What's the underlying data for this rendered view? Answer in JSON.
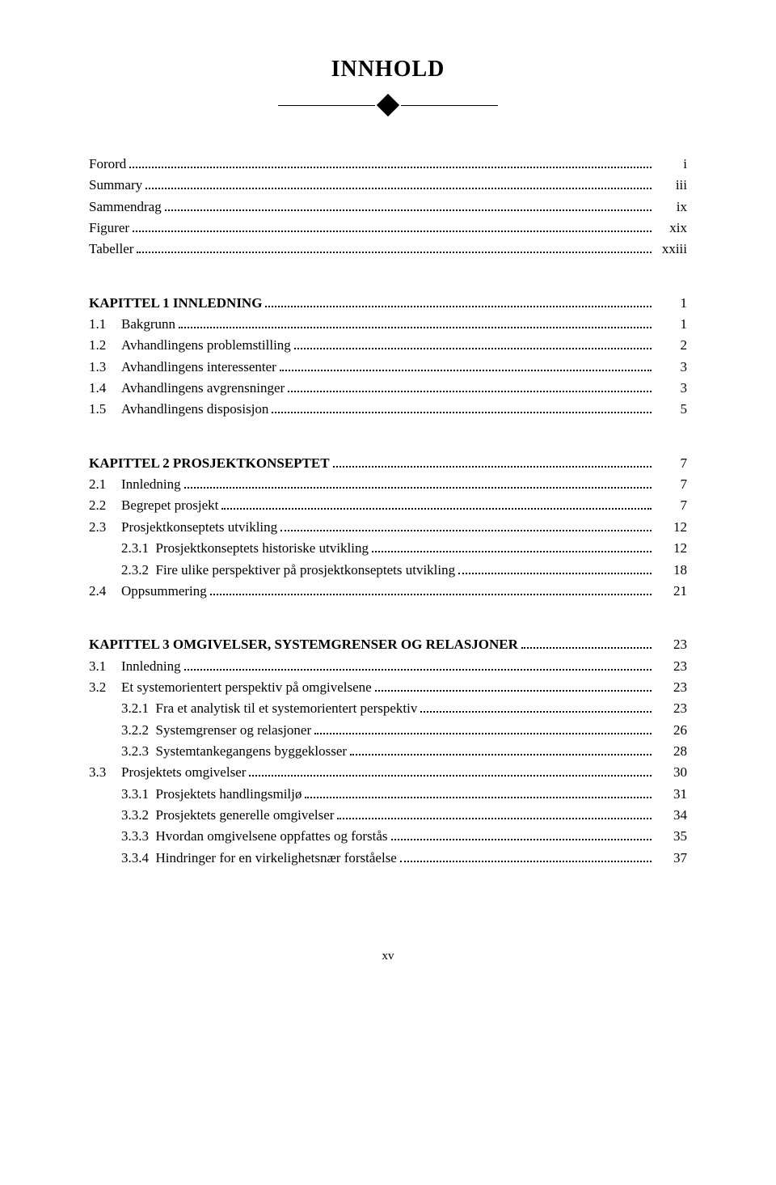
{
  "title": "INNHOLD",
  "page_number": "xv",
  "blocks": [
    {
      "entries": [
        {
          "level": 0,
          "num": "",
          "label": "Forord",
          "page": "i"
        },
        {
          "level": 0,
          "num": "",
          "label": "Summary",
          "page": "iii"
        },
        {
          "level": 0,
          "num": "",
          "label": "Sammendrag",
          "page": "ix"
        },
        {
          "level": 0,
          "num": "",
          "label": "Figurer",
          "page": "xix"
        },
        {
          "level": 0,
          "num": "",
          "label": "Tabeller",
          "page": "xxiii"
        }
      ]
    },
    {
      "entries": [
        {
          "level": 0,
          "num": "",
          "label": "KAPITTEL 1  INNLEDNING",
          "page": "1",
          "heading": true
        },
        {
          "level": 1,
          "num": "1.1",
          "label": "Bakgrunn",
          "page": "1"
        },
        {
          "level": 1,
          "num": "1.2",
          "label": "Avhandlingens problemstilling",
          "page": "2"
        },
        {
          "level": 1,
          "num": "1.3",
          "label": "Avhandlingens interessenter",
          "page": "3"
        },
        {
          "level": 1,
          "num": "1.4",
          "label": "Avhandlingens avgrensninger",
          "page": "3"
        },
        {
          "level": 1,
          "num": "1.5",
          "label": "Avhandlingens disposisjon",
          "page": "5"
        }
      ]
    },
    {
      "entries": [
        {
          "level": 0,
          "num": "",
          "label": "KAPITTEL  2  PROSJEKTKONSEPTET",
          "page": "7",
          "heading": true
        },
        {
          "level": 1,
          "num": "2.1",
          "label": "Innledning",
          "page": "7"
        },
        {
          "level": 1,
          "num": "2.2",
          "label": "Begrepet prosjekt",
          "page": "7"
        },
        {
          "level": 1,
          "num": "2.3",
          "label": "Prosjektkonseptets utvikling",
          "page": "12"
        },
        {
          "level": 2,
          "num": "2.3.1",
          "label": "Prosjektkonseptets historiske utvikling",
          "page": "12"
        },
        {
          "level": 2,
          "num": "2.3.2",
          "label": "Fire ulike perspektiver på prosjektkonseptets utvikling",
          "page": "18"
        },
        {
          "level": 1,
          "num": "2.4",
          "label": "Oppsummering",
          "page": "21"
        }
      ]
    },
    {
      "entries": [
        {
          "level": 0,
          "num": "",
          "label": "KAPITTEL 3  OMGIVELSER, SYSTEMGRENSER OG RELASJONER",
          "page": "23",
          "heading": true
        },
        {
          "level": 1,
          "num": "3.1",
          "label": "Innledning",
          "page": "23"
        },
        {
          "level": 1,
          "num": "3.2",
          "label": "Et systemorientert perspektiv på omgivelsene",
          "page": "23"
        },
        {
          "level": 2,
          "num": "3.2.1",
          "label": "Fra et analytisk til et systemorientert perspektiv",
          "page": "23"
        },
        {
          "level": 2,
          "num": "3.2.2",
          "label": "Systemgrenser og relasjoner",
          "page": "26"
        },
        {
          "level": 2,
          "num": "3.2.3",
          "label": "Systemtankegangens byggeklosser",
          "page": "28"
        },
        {
          "level": 1,
          "num": "3.3",
          "label": "Prosjektets omgivelser",
          "page": "30"
        },
        {
          "level": 2,
          "num": "3.3.1",
          "label": "Prosjektets handlingsmiljø",
          "page": "31"
        },
        {
          "level": 2,
          "num": "3.3.2",
          "label": "Prosjektets generelle omgivelser",
          "page": "34"
        },
        {
          "level": 2,
          "num": "3.3.3",
          "label": "Hvordan omgivelsene oppfattes og forstås",
          "page": "35"
        },
        {
          "level": 2,
          "num": "3.3.4",
          "label": "Hindringer for en virkelighetsnær forståelse",
          "page": "37"
        }
      ]
    }
  ]
}
